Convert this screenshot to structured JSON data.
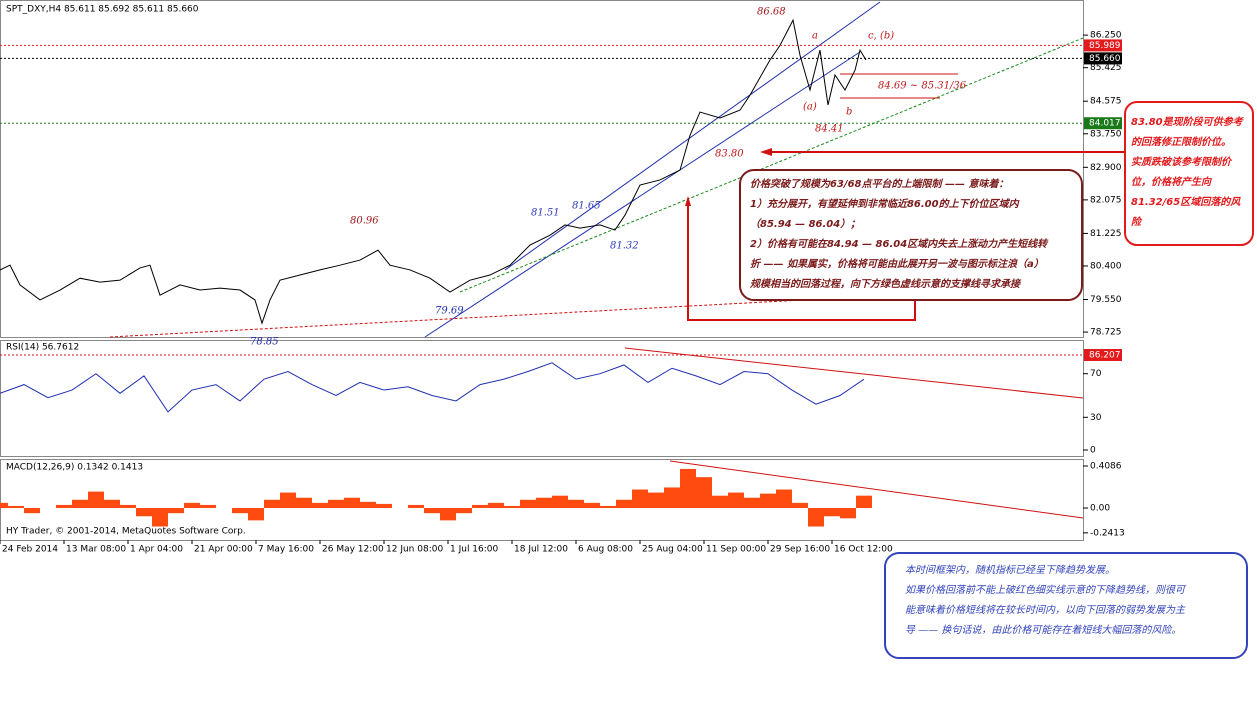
{
  "chart_data": [
    {
      "type": "line",
      "title": "SPT_DXY,H4  85.611 85.692 85.611 85.660",
      "color": "#000000",
      "xlim": [
        0,
        1083
      ],
      "ylim": [
        78.6,
        87.14
      ],
      "xticks": [
        {
          "value": 0,
          "label": "24 Feb 2014"
        },
        {
          "value": 64,
          "label": "13 Mar 08:00"
        },
        {
          "value": 128,
          "label": "1 Apr 04:00"
        },
        {
          "value": 192,
          "label": "21 Apr 00:00"
        },
        {
          "value": 256,
          "label": "7 May 16:00"
        },
        {
          "value": 320,
          "label": "26 May 12:00"
        },
        {
          "value": 384,
          "label": "12 Jun 08:00"
        },
        {
          "value": 448,
          "label": "1 Jul 16:00"
        },
        {
          "value": 512,
          "label": "18 Jul 12:00"
        },
        {
          "value": 576,
          "label": "6 Aug 08:00"
        },
        {
          "value": 640,
          "label": "25 Aug 04:00"
        },
        {
          "value": 704,
          "label": "11 Sep 00:00"
        },
        {
          "value": 768,
          "label": "29 Sep 16:00"
        },
        {
          "value": 832,
          "label": "16 Oct 12:00"
        }
      ],
      "yticks": [
        {
          "value": 86.25,
          "label": "86.250"
        },
        {
          "value": 85.425,
          "label": "85.425"
        },
        {
          "value": 84.575,
          "label": "84.575"
        },
        {
          "value": 83.75,
          "label": "83.750"
        },
        {
          "value": 82.9,
          "label": "82.900"
        },
        {
          "value": 82.075,
          "label": "82.075"
        },
        {
          "value": 81.225,
          "label": "81.225"
        },
        {
          "value": 80.4,
          "label": "80.400"
        },
        {
          "value": 79.55,
          "label": "79.550"
        },
        {
          "value": 78.725,
          "label": "78.725"
        }
      ],
      "x": [
        0,
        10,
        20,
        40,
        60,
        80,
        100,
        120,
        140,
        150,
        160,
        180,
        200,
        220,
        240,
        255,
        262,
        270,
        280,
        300,
        320,
        340,
        360,
        378,
        390,
        410,
        430,
        450,
        470,
        490,
        510,
        530,
        550,
        565,
        580,
        600,
        615,
        625,
        640,
        660,
        680,
        690,
        700,
        720,
        740,
        750,
        770,
        780,
        793,
        800,
        810,
        820,
        828,
        835,
        845,
        855,
        860,
        866
      ],
      "values": [
        80.3,
        80.42,
        79.92,
        79.54,
        79.79,
        80.09,
        79.99,
        80.04,
        80.35,
        80.42,
        79.66,
        79.92,
        79.79,
        79.84,
        79.79,
        79.54,
        78.95,
        79.54,
        80.04,
        80.17,
        80.3,
        80.42,
        80.55,
        80.8,
        80.42,
        80.3,
        80.09,
        79.74,
        80.04,
        80.17,
        80.42,
        80.93,
        81.18,
        81.44,
        81.36,
        81.44,
        81.31,
        81.69,
        82.45,
        82.58,
        82.83,
        83.71,
        84.3,
        84.15,
        84.35,
        84.73,
        85.62,
        85.99,
        86.63,
        85.74,
        84.86,
        85.87,
        84.48,
        85.24,
        84.86,
        85.36,
        85.87,
        85.62
      ],
      "price_tags": [
        {
          "value": 85.989,
          "label": "85.989",
          "color": "#e31a1c"
        },
        {
          "value": 85.66,
          "label": "85.660",
          "color": "#000000"
        },
        {
          "value": 84.017,
          "label": "84.017",
          "color": "#1a7a1a"
        }
      ],
      "annotations": [
        "86.68",
        "a",
        "c, (b)",
        "(a)",
        "b",
        "84.41",
        "84.69 ~ 85.31/36",
        "83.80",
        "81.65",
        "81.51",
        "81.32",
        "80.96",
        "79.69",
        "78.85"
      ],
      "note_main": [
        "价格突破了规模为63/68点平台的上端限制 —— 意味着：",
        "1）充分展开，有望延伸到非常临近86.00的上下价位区域内",
        "（85.94 — 86.04）；",
        "2）价格有可能在84.94 — 86.04区域内失去上涨动力产生短线转",
        "折 —— 如果属实，价格将可能由此展开另一波与图示标注浪（a）",
        "规模相当的回落过程，向下方绿色虚线示意的支撑线寻求承接"
      ],
      "note_right": [
        "83.80是现阶段可供参考",
        "的回落修正限制价位。",
        "实质跌破该参考限制价",
        "位，价格将产生向",
        "81.32/65区域回落的风",
        "险"
      ],
      "note_bottom": [
        "本时间框架内，随机指标已经呈下降趋势发展。",
        "如果价格回落前不能上破红色细实线示意的下降趋势线，则很可",
        "能意味着价格短线将在较长时间内，以向下回落的弱势发展为主",
        "导 —— 换句话说，由此价格可能存在着短线大幅回落的风险。"
      ]
    },
    {
      "type": "line",
      "title": "RSI(14) 56.7612",
      "color": "#1f2fb0",
      "ylim": [
        0,
        100
      ],
      "yticks": [
        70,
        30,
        0
      ],
      "price_tag": "86.207",
      "x": [
        0,
        24,
        48,
        72,
        96,
        120,
        144,
        168,
        192,
        216,
        240,
        264,
        288,
        312,
        336,
        360,
        384,
        408,
        432,
        456,
        480,
        504,
        528,
        552,
        576,
        600,
        624,
        648,
        672,
        696,
        720,
        744,
        768,
        792,
        816,
        840,
        864
      ],
      "values": [
        52,
        60,
        48,
        55,
        70,
        52,
        68,
        35,
        55,
        60,
        45,
        65,
        72,
        60,
        50,
        62,
        55,
        58,
        50,
        45,
        60,
        65,
        72,
        80,
        65,
        70,
        78,
        62,
        75,
        68,
        60,
        72,
        70,
        55,
        42,
        50,
        65
      ]
    },
    {
      "type": "bar",
      "title": "MACD(12,26,9) 0.1342 0.1413",
      "copyright": "HY Trader, © 2001-2014, MetaQuotes Software Corp.",
      "color": "#ff4a10",
      "ylim": [
        -0.311,
        0.467
      ],
      "yticks": [
        {
          "value": 0.4086,
          "label": "0.4086"
        },
        {
          "value": 0,
          "label": "0.00"
        },
        {
          "value": -0.2413,
          "label": "-0.2413"
        }
      ],
      "x": [
        0,
        16,
        32,
        48,
        64,
        80,
        96,
        112,
        128,
        144,
        160,
        176,
        192,
        208,
        224,
        240,
        256,
        272,
        288,
        304,
        320,
        336,
        352,
        368,
        384,
        400,
        416,
        432,
        448,
        464,
        480,
        496,
        512,
        528,
        544,
        560,
        576,
        592,
        608,
        624,
        640,
        656,
        672,
        688,
        704,
        720,
        736,
        752,
        768,
        784,
        800,
        816,
        832,
        848,
        864
      ],
      "values": [
        0.05,
        0.02,
        -0.05,
        0.0,
        0.03,
        0.08,
        0.16,
        0.08,
        0.03,
        -0.08,
        -0.18,
        -0.05,
        0.05,
        0.03,
        0.0,
        -0.05,
        -0.12,
        0.08,
        0.15,
        0.1,
        0.05,
        0.08,
        0.1,
        0.06,
        0.04,
        0.0,
        0.03,
        -0.05,
        -0.12,
        -0.05,
        0.03,
        0.05,
        0.02,
        0.08,
        0.1,
        0.12,
        0.08,
        0.05,
        0.02,
        0.08,
        0.18,
        0.15,
        0.2,
        0.38,
        0.3,
        0.12,
        0.15,
        0.1,
        0.14,
        0.18,
        0.05,
        -0.18,
        -0.08,
        -0.1,
        0.12
      ]
    }
  ]
}
